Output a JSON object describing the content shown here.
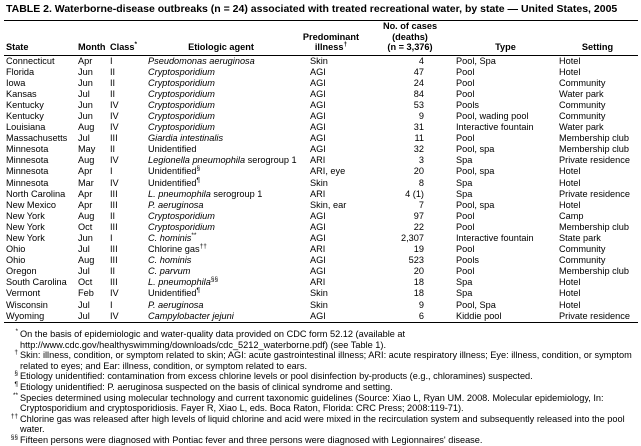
{
  "title": "TABLE 2. Waterborne-disease outbreaks (n = 24) associated with treated recreational water, by state — United States, 2005",
  "table": {
    "columns": [
      {
        "lines": [
          "State"
        ],
        "align": "l"
      },
      {
        "lines": [
          "Month"
        ],
        "align": "l"
      },
      {
        "lines": [
          "Class"
        ],
        "note": "*",
        "align": "l"
      },
      {
        "lines": [
          "Etiologic agent"
        ],
        "align": "c"
      },
      {
        "lines": [
          "Predominant",
          "illness"
        ],
        "note": "†",
        "align": "c"
      },
      {
        "lines": [
          "No. of cases",
          "(deaths)",
          "(n = 3,376)"
        ],
        "align": "c"
      },
      {
        "lines": [
          "Type"
        ],
        "align": "c"
      },
      {
        "lines": [
          "Setting"
        ],
        "align": "c"
      }
    ],
    "rows": [
      [
        "Connecticut",
        "Apr",
        "I",
        {
          "text": "Pseudomonas aeruginosa",
          "italic": true
        },
        "Skin",
        "4",
        "Pool, Spa",
        "Hotel"
      ],
      [
        "Florida",
        "Jun",
        "II",
        {
          "text": "Cryptosporidium",
          "italic": true
        },
        "AGI",
        "47",
        "Pool",
        "Hotel"
      ],
      [
        "Iowa",
        "Jun",
        "II",
        {
          "text": "Cryptosporidium",
          "italic": true
        },
        "AGI",
        "24",
        "Pool",
        "Community"
      ],
      [
        "Kansas",
        "Jul",
        "II",
        {
          "text": "Cryptosporidium",
          "italic": true
        },
        "AGI",
        "84",
        "Pool",
        "Water park"
      ],
      [
        "Kentucky",
        "Jun",
        "IV",
        {
          "text": "Cryptosporidium",
          "italic": true
        },
        "AGI",
        "53",
        "Pools",
        "Community"
      ],
      [
        "Kentucky",
        "Jun",
        "IV",
        {
          "text": "Cryptosporidium",
          "italic": true
        },
        "AGI",
        "9",
        "Pool, wading pool",
        "Community"
      ],
      [
        "Louisiana",
        "Aug",
        "IV",
        {
          "text": "Cryptosporidium",
          "italic": true
        },
        "AGI",
        "31",
        "Interactive fountain",
        "Water park"
      ],
      [
        "Massachusetts",
        "Jul",
        "III",
        {
          "text": "Giardia intestinalis",
          "italic": true
        },
        "AGI",
        "11",
        "Pool",
        "Membership club"
      ],
      [
        "Minnesota",
        "May",
        "II",
        {
          "text": "Unidentified",
          "italic": false
        },
        "AGI",
        "32",
        "Pool, spa",
        "Membership club"
      ],
      [
        "Minnesota",
        "Aug",
        "IV",
        {
          "text": "Legionella pneumophila",
          "italic": true,
          "extra": " serogroup 1"
        },
        "ARI",
        "3",
        "Spa",
        "Private residence"
      ],
      [
        "Minnesota",
        "Apr",
        "I",
        {
          "text": "Unidentified",
          "italic": false,
          "note": "§"
        },
        "ARI, eye",
        "20",
        "Pool, spa",
        "Hotel"
      ],
      [
        "Minnesota",
        "Mar",
        "IV",
        {
          "text": "Unidentified",
          "italic": false,
          "note": "¶"
        },
        "Skin",
        "8",
        "Spa",
        "Hotel"
      ],
      [
        "North Carolina",
        "Apr",
        "III",
        {
          "text": "L. pneumophila",
          "italic": true,
          "extra": " serogroup 1"
        },
        "ARI",
        "4 (1)",
        "Spa",
        "Private residence"
      ],
      [
        "New Mexico",
        "Apr",
        "III",
        {
          "text": "P. aeruginosa",
          "italic": true
        },
        "Skin, ear",
        "7",
        "Pool, spa",
        "Hotel"
      ],
      [
        "New York",
        "Aug",
        "II",
        {
          "text": "Cryptosporidium",
          "italic": true
        },
        "AGI",
        "97",
        "Pool",
        "Camp"
      ],
      [
        "New York",
        "Oct",
        "III",
        {
          "text": "Cryptosporidium",
          "italic": true
        },
        "AGI",
        "22",
        "Pool",
        "Membership club"
      ],
      [
        "New York",
        "Jun",
        "I",
        {
          "text": "C. hominis",
          "italic": true,
          "note": "**"
        },
        "AGI",
        "2,307",
        "Interactive fountain",
        "State park"
      ],
      [
        "Ohio",
        "Jul",
        "III",
        {
          "text": "Chlorine gas",
          "italic": false,
          "note": "††"
        },
        "ARI",
        "19",
        "Pool",
        "Community"
      ],
      [
        "Ohio",
        "Aug",
        "III",
        {
          "text": "C. hominis",
          "italic": true
        },
        "AGI",
        "523",
        "Pools",
        "Community"
      ],
      [
        "Oregon",
        "Jul",
        "II",
        {
          "text": "C. parvum",
          "italic": true
        },
        "AGI",
        "20",
        "Pool",
        "Membership club"
      ],
      [
        "South Carolina",
        "Oct",
        "III",
        {
          "text": "L. pneumophila",
          "italic": true,
          "note": "§§"
        },
        "ARI",
        "18",
        "Spa",
        "Hotel"
      ],
      [
        "Vermont",
        "Feb",
        "IV",
        {
          "text": "Unidentified",
          "italic": false,
          "note": "¶"
        },
        "Skin",
        "18",
        "Spa",
        "Hotel"
      ],
      [
        "Wisconsin",
        "Jul",
        "I",
        {
          "text": "P. aeruginosa",
          "italic": true
        },
        "Skin",
        "9",
        "Pool, Spa",
        "Hotel"
      ],
      [
        "Wyoming",
        "Jul",
        "IV",
        {
          "text": "Campylobacter jejuni",
          "italic": true
        },
        "AGI",
        "6",
        "Kiddie pool",
        "Private residence"
      ]
    ]
  },
  "footnotes": [
    {
      "mark": "*",
      "text": "On the basis of epidemiologic and water-quality data provided on CDC form 52.12 (available at http://www.cdc.gov/healthyswimming/downloads/cdc_5212_waterborne.pdf) (see Table 1)."
    },
    {
      "mark": "†",
      "text": "Skin: illness, condition, or symptom related to skin; AGI: acute gastrointestinal illness; ARI: acute respiratory illness; Eye: illness, condition, or symptom related to eyes; and Ear: illness, condition, or symptom related to ears."
    },
    {
      "mark": "§",
      "text": "Etiology unidentified: contamination from excess chlorine levels or pool disinfection by-products (e.g., chloramines) suspected."
    },
    {
      "mark": "¶",
      "text": "Etiology unidentified: P. aeruginosa suspected on the basis of clinical syndrome and setting."
    },
    {
      "mark": "**",
      "text": "Species determined using molecular technology and current taxonomic guidelines (Source: Xiao L, Ryan UM. 2008. Molecular epidemiology, In: Cryptosporidium and cryptosporidiosis. Fayer R, Xiao L, eds. Boca Raton, Florida: CRC Press; 2008:119-71)."
    },
    {
      "mark": "††",
      "text": "Chlorine gas was released after high levels of liquid chlorine and acid were mixed in the recirculation system and subsequently released into the pool water."
    },
    {
      "mark": "§§",
      "text": "Fifteen persons were diagnosed with Pontiac fever and three persons were diagnosed with Legionnaires' disease."
    }
  ]
}
